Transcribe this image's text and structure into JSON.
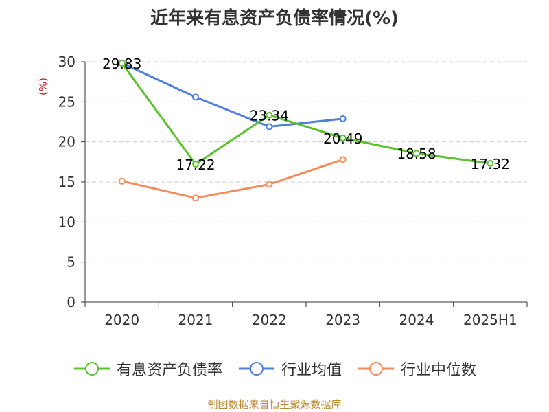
{
  "title": "近年来有息资产负债率情况(%)",
  "source": "制图数据来自恒生聚源数据库",
  "chart_data": {
    "type": "line",
    "categories": [
      "2020",
      "2021",
      "2022",
      "2023",
      "2024",
      "2025H1"
    ],
    "ylabel": "(%)",
    "ylim": [
      0,
      30
    ],
    "yticks": [
      0,
      5,
      10,
      15,
      20,
      25,
      30
    ],
    "grid": true,
    "legend_position": "bottom",
    "series": [
      {
        "name": "有息资产负债率",
        "color": "#5cc12e",
        "values": [
          29.83,
          17.22,
          23.34,
          20.49,
          18.58,
          17.32
        ],
        "labels": [
          "29.83",
          "17.22",
          "23.34",
          "20.49",
          "18.58",
          "17.32"
        ]
      },
      {
        "name": "行业均值",
        "color": "#4f7fd8",
        "values": [
          29.83,
          25.6,
          21.9,
          22.9,
          null,
          null
        ]
      },
      {
        "name": "行业中位数",
        "color": "#f58b59",
        "values": [
          15.1,
          13.0,
          14.7,
          17.8,
          null,
          null
        ]
      }
    ]
  }
}
